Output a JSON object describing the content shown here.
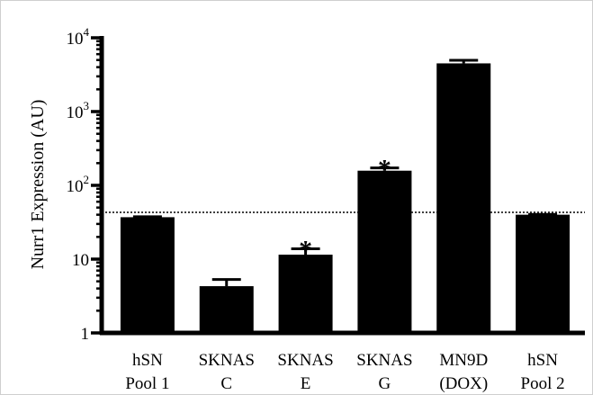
{
  "chart_data": {
    "type": "bar",
    "title": "",
    "xlabel": "",
    "ylabel": "Nurr1 Expression (AU)",
    "yscale": "log",
    "ylim": [
      1,
      10000
    ],
    "ytick_labels": [
      {
        "value": 1,
        "base": "1",
        "exp": ""
      },
      {
        "value": 10,
        "base": "10",
        "exp": ""
      },
      {
        "value": 100,
        "base": "10",
        "exp": "2"
      },
      {
        "value": 1000,
        "base": "10",
        "exp": "3"
      },
      {
        "value": 10000,
        "base": "10",
        "exp": "4"
      }
    ],
    "categories": [
      [
        "hSN",
        "Pool 1"
      ],
      [
        "SKNAS",
        "C"
      ],
      [
        "SKNAS",
        "E"
      ],
      [
        "SKNAS",
        "G"
      ],
      [
        "MN9D",
        "(DOX)"
      ],
      [
        "hSN",
        "Pool 2"
      ]
    ],
    "values": [
      37,
      4.3,
      11.5,
      158,
      4500,
      40
    ],
    "error_upper": [
      37.5,
      5.3,
      13.8,
      172,
      4950,
      40.5
    ],
    "significance": [
      "",
      "",
      "*",
      "*",
      "",
      ""
    ],
    "reference_line": {
      "value": 43,
      "style": "dotted"
    },
    "grid": false,
    "legend": "none",
    "colors": {
      "bar": "#000000",
      "axis": "#000000"
    }
  }
}
